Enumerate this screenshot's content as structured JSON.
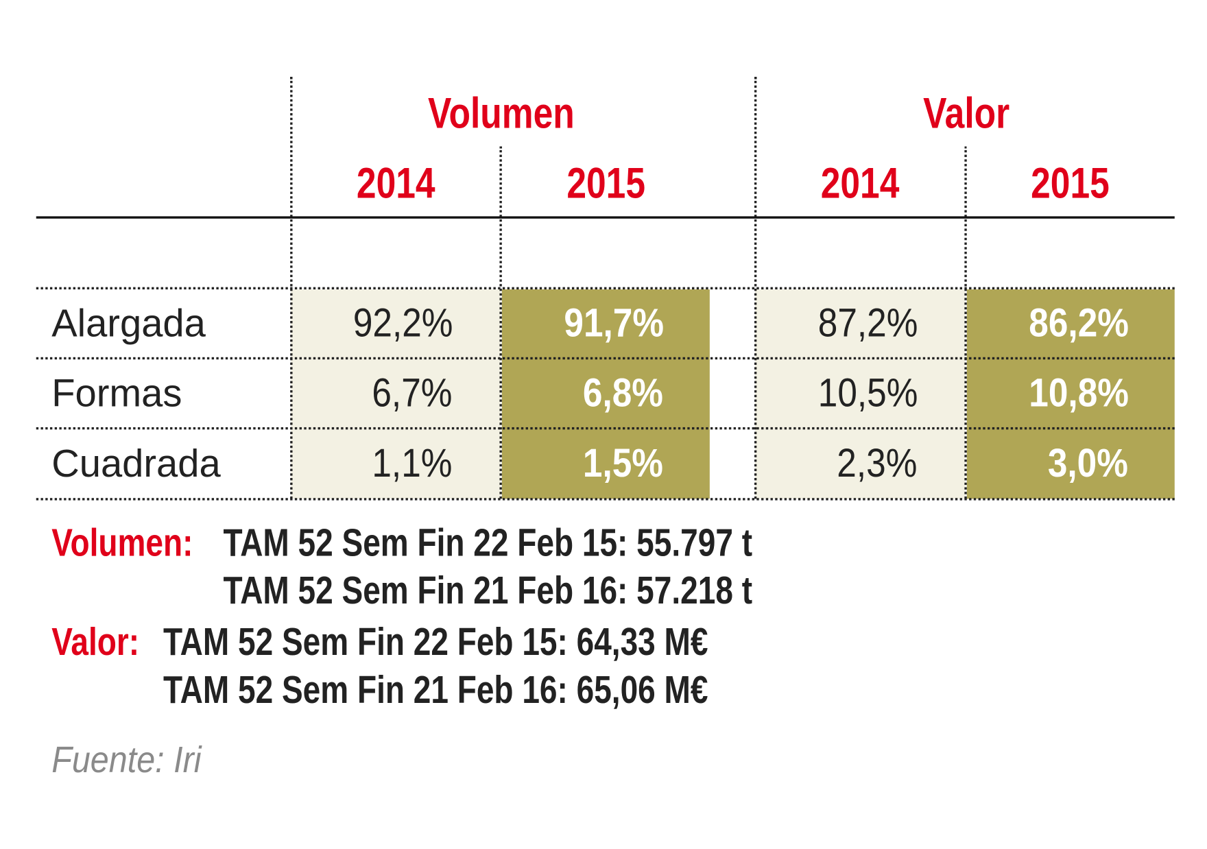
{
  "chart_data": {
    "type": "table",
    "groups": [
      {
        "label": "Volumen",
        "years": [
          "2014",
          "2015"
        ]
      },
      {
        "label": "Valor",
        "years": [
          "2014",
          "2015"
        ]
      }
    ],
    "rows": [
      {
        "label": "Alargada",
        "values": [
          "92,2%",
          "91,7%",
          "87,2%",
          "86,2%"
        ]
      },
      {
        "label": "Formas",
        "values": [
          "6,7%",
          "6,8%",
          "10,5%",
          "10,8%"
        ]
      },
      {
        "label": "Cuadrada",
        "values": [
          "1,1%",
          "1,5%",
          "2,3%",
          "3,0%"
        ]
      }
    ],
    "colors": {
      "accent": "#e0001a",
      "highlight": "#b0a655",
      "light": "#f3f1e3"
    }
  },
  "notes": {
    "volumen_label": "Volumen:",
    "volumen_lines": [
      "TAM 52 Sem Fin 22 Feb 15: 55.797 t",
      "TAM 52 Sem Fin 21 Feb 16: 57.218 t"
    ],
    "valor_label": "Valor:",
    "valor_lines": [
      "TAM 52 Sem Fin 22 Feb 15: 64,33 M€",
      "TAM 52 Sem Fin 21 Feb 16: 65,06 M€"
    ],
    "source": "Fuente: Iri"
  }
}
